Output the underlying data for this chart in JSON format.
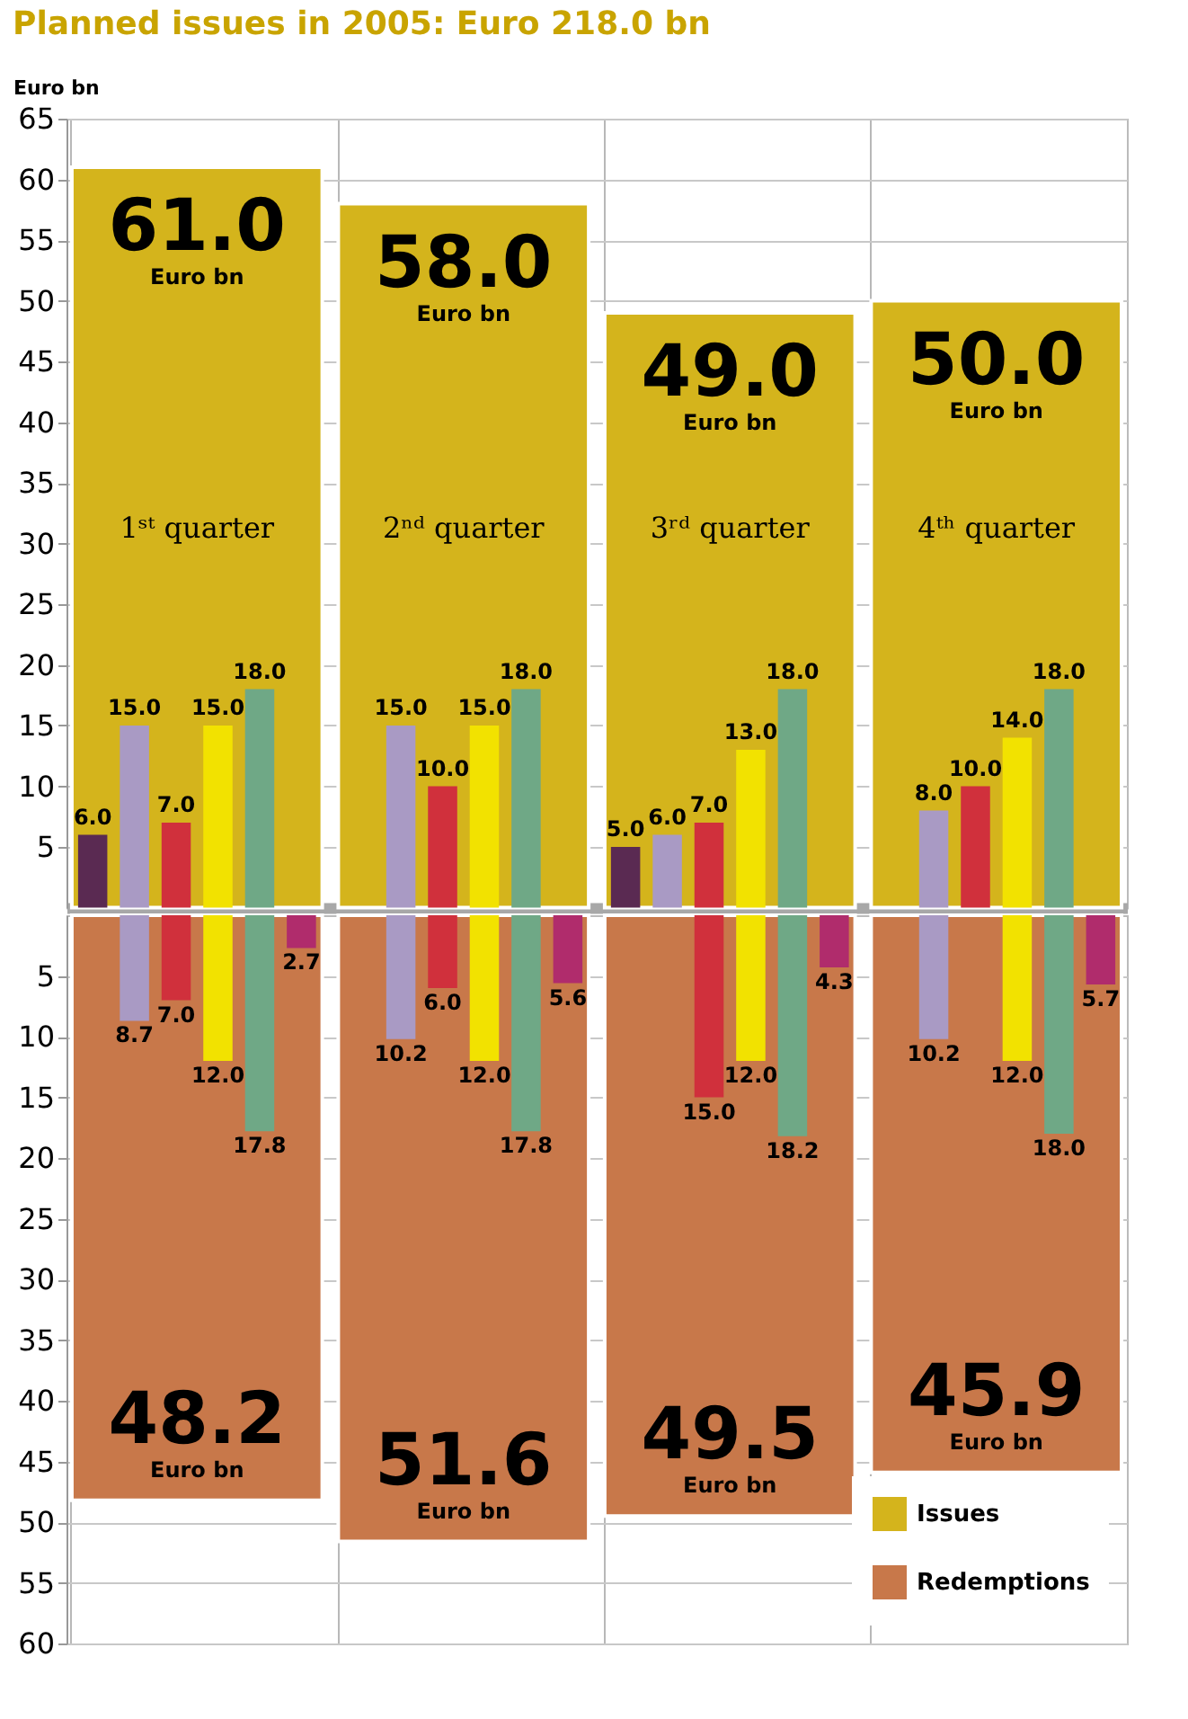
{
  "chart_data": [
    {
      "type": "bar",
      "title": "Planned issues in 2005: Euro 218.0 bn",
      "ylabel": "Euro bn",
      "categories": [
        "1ˢᵗ quarter",
        "2ⁿᵈ quarter",
        "3ʳᵈ quarter",
        "4ᵗʰ quarter"
      ],
      "series": [
        {
          "name": "Issues",
          "color": "#d4b41c",
          "values": [
            61.0,
            58.0,
            49.0,
            50.0
          ],
          "value_labels": [
            "61.0",
            "58.0",
            "49.0",
            "50.0"
          ]
        },
        {
          "color": "#5a2a52",
          "values": [
            6.0,
            null,
            5.0,
            null
          ],
          "value_labels": [
            "6.0",
            null,
            "5.0",
            null
          ]
        },
        {
          "color": "#a99ac4",
          "values": [
            15.0,
            15.0,
            6.0,
            8.0
          ],
          "value_labels": [
            "15.0",
            "15.0",
            "6.0",
            "8.0"
          ]
        },
        {
          "color": "#d0303c",
          "values": [
            7.0,
            10.0,
            7.0,
            10.0
          ],
          "value_labels": [
            "7.0",
            "10.0",
            "7.0",
            "10.0"
          ]
        },
        {
          "color": "#f2e200",
          "values": [
            15.0,
            15.0,
            13.0,
            14.0
          ],
          "value_labels": [
            "15.0",
            "15.0",
            "13.0",
            "14.0"
          ]
        },
        {
          "color": "#6fa886",
          "values": [
            18.0,
            18.0,
            18.0,
            18.0
          ],
          "value_labels": [
            "18.0",
            "18.0",
            "18.0",
            "18.0"
          ]
        }
      ],
      "annotations": [
        "Euro bn",
        "Euro bn",
        "Euro bn",
        "Euro bn"
      ],
      "ylim": [
        0,
        65
      ],
      "yticks": [
        5,
        10,
        15,
        20,
        25,
        30,
        35,
        40,
        45,
        50,
        55,
        60,
        65
      ],
      "grid": "y"
    },
    {
      "type": "bar",
      "categories": [
        null,
        null,
        null,
        null
      ],
      "series": [
        {
          "name": "Redemptions",
          "color": "#c8784a",
          "values": [
            48.2,
            51.6,
            49.5,
            45.9
          ],
          "value_labels": [
            "48.2",
            "51.6",
            "49.5",
            "45.9"
          ]
        },
        {
          "color": "#a99ac4",
          "values": [
            8.7,
            10.2,
            null,
            10.2
          ],
          "value_labels": [
            "8.7",
            "10.2",
            null,
            "10.2"
          ]
        },
        {
          "color": "#d0303c",
          "values": [
            7.0,
            6.0,
            15.0,
            null
          ],
          "value_labels": [
            "7.0",
            "6.0",
            "15.0",
            null
          ]
        },
        {
          "color": "#f2e200",
          "values": [
            12.0,
            12.0,
            12.0,
            12.0
          ],
          "value_labels": [
            "12.0",
            "12.0",
            "12.0",
            "12.0"
          ]
        },
        {
          "color": "#6fa886",
          "values": [
            17.8,
            17.8,
            18.2,
            18.0
          ],
          "value_labels": [
            "17.8",
            "17.8",
            "18.2",
            "18.0"
          ]
        },
        {
          "color": "#b02c6c",
          "values": [
            2.7,
            5.6,
            4.3,
            5.7
          ],
          "value_labels": [
            "2.7",
            "5.6",
            "4.3",
            "5.7"
          ]
        }
      ],
      "annotations": [
        "Euro bn",
        "Euro bn",
        "Euro bn",
        "Euro bn"
      ],
      "ylim": [
        60,
        0
      ],
      "yticks": [
        5,
        10,
        15,
        20,
        25,
        30,
        35,
        40,
        45,
        50,
        55,
        60
      ],
      "grid": "y",
      "legend": "bottom right",
      "tick_labels": "y"
    }
  ]
}
